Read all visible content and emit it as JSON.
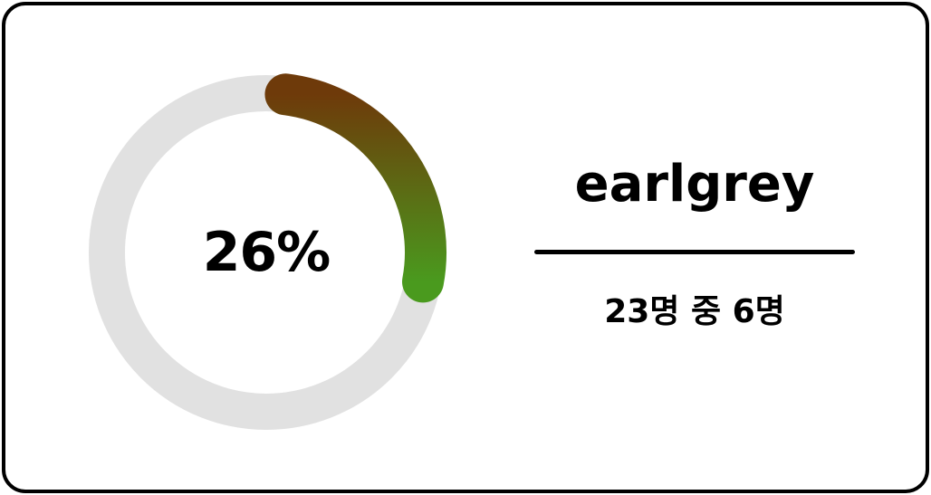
{
  "progress": {
    "percent_label": "26%",
    "fraction": 0.26,
    "track_color": "#e1e1e1",
    "gradient_start_color": "#6e3a0a",
    "gradient_end_color": "#4a9a1e"
  },
  "user": {
    "name": "earlgrey",
    "count_label": "23명 중 6명"
  }
}
